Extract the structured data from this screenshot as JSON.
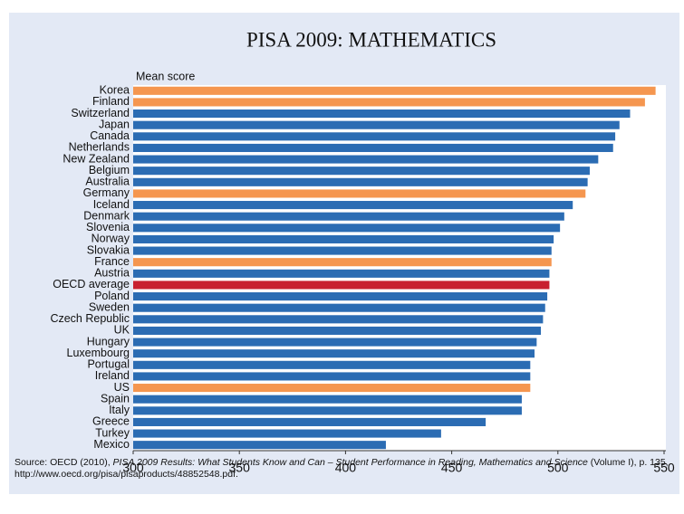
{
  "chart_data": {
    "type": "barh",
    "title": "PISA 2009: MATHEMATICS",
    "axis_label": "Mean score",
    "categories": [
      "Korea",
      "Finland",
      "Switzerland",
      "Japan",
      "Canada",
      "Netherlands",
      "New Zealand",
      "Belgium",
      "Australia",
      "Germany",
      "Iceland",
      "Denmark",
      "Slovenia",
      "Norway",
      "Slovakia",
      "France",
      "Austria",
      "OECD average",
      "Poland",
      "Sweden",
      "Czech Republic",
      "UK",
      "Hungary",
      "Luxembourg",
      "Portugal",
      "Ireland",
      "US",
      "Spain",
      "Italy",
      "Greece",
      "Turkey",
      "Mexico"
    ],
    "values": [
      546,
      541,
      534,
      529,
      527,
      526,
      519,
      515,
      514,
      513,
      507,
      503,
      501,
      498,
      497,
      497,
      496,
      496,
      495,
      494,
      493,
      492,
      490,
      489,
      487,
      487,
      487,
      483,
      483,
      466,
      445,
      419
    ],
    "colors": [
      "#f5964f",
      "#f5964f",
      "#2b6cb3",
      "#2b6cb3",
      "#2b6cb3",
      "#2b6cb3",
      "#2b6cb3",
      "#2b6cb3",
      "#2b6cb3",
      "#f5964f",
      "#2b6cb3",
      "#2b6cb3",
      "#2b6cb3",
      "#2b6cb3",
      "#2b6cb3",
      "#f5964f",
      "#2b6cb3",
      "#c8202f",
      "#2b6cb3",
      "#2b6cb3",
      "#2b6cb3",
      "#2b6cb3",
      "#2b6cb3",
      "#2b6cb3",
      "#2b6cb3",
      "#2b6cb3",
      "#f5964f",
      "#2b6cb3",
      "#2b6cb3",
      "#2b6cb3",
      "#2b6cb3",
      "#2b6cb3"
    ],
    "xlim": [
      300,
      550
    ],
    "xticks": [
      300,
      350,
      400,
      450,
      500,
      550
    ],
    "source": [
      "Source: OECD (2010), ",
      "PISA 2009 Results: What Students Know and Can – Student Performance in Reading, Mathematics and Science",
      " (Volume I), p. 135, http://www.oecd.org/pisa/pisaproducts/48852548.pdf."
    ]
  }
}
